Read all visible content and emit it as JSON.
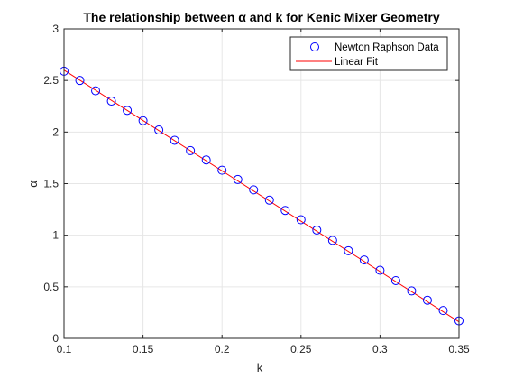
{
  "chart_data": {
    "type": "scatter",
    "title": "The relationship between α and k for Kenic Mixer Geometry",
    "xlabel": "k",
    "ylabel": "α",
    "xlim": [
      0.1,
      0.35
    ],
    "ylim": [
      0,
      3
    ],
    "xticks": [
      0.1,
      0.15,
      0.2,
      0.25,
      0.3,
      0.35
    ],
    "xtick_labels": [
      "0.1",
      "0.15",
      "0.2",
      "0.25",
      "0.3",
      "0.35"
    ],
    "yticks": [
      0,
      0.5,
      1,
      1.5,
      2,
      2.5,
      3
    ],
    "ytick_labels": [
      "0",
      "0.5",
      "1",
      "1.5",
      "2",
      "2.5",
      "3"
    ],
    "grid": true,
    "legend_position": "top-right",
    "series": [
      {
        "name": "Newton Raphson Data",
        "kind": "markers",
        "marker": "circle-open",
        "color": "#0000ff",
        "x": [
          0.1,
          0.11,
          0.12,
          0.13,
          0.14,
          0.15,
          0.16,
          0.17,
          0.18,
          0.19,
          0.2,
          0.21,
          0.22,
          0.23,
          0.24,
          0.25,
          0.26,
          0.27,
          0.28,
          0.29,
          0.3,
          0.31,
          0.32,
          0.33,
          0.34,
          0.35
        ],
        "y": [
          2.59,
          2.5,
          2.4,
          2.3,
          2.21,
          2.11,
          2.02,
          1.92,
          1.82,
          1.73,
          1.63,
          1.54,
          1.44,
          1.34,
          1.24,
          1.15,
          1.05,
          0.95,
          0.85,
          0.76,
          0.66,
          0.56,
          0.46,
          0.37,
          0.27,
          0.17
        ]
      },
      {
        "name": "Linear Fit",
        "kind": "line",
        "color": "#ff0000",
        "x": [
          0.1,
          0.35
        ],
        "y": [
          2.6,
          0.16
        ]
      }
    ]
  }
}
